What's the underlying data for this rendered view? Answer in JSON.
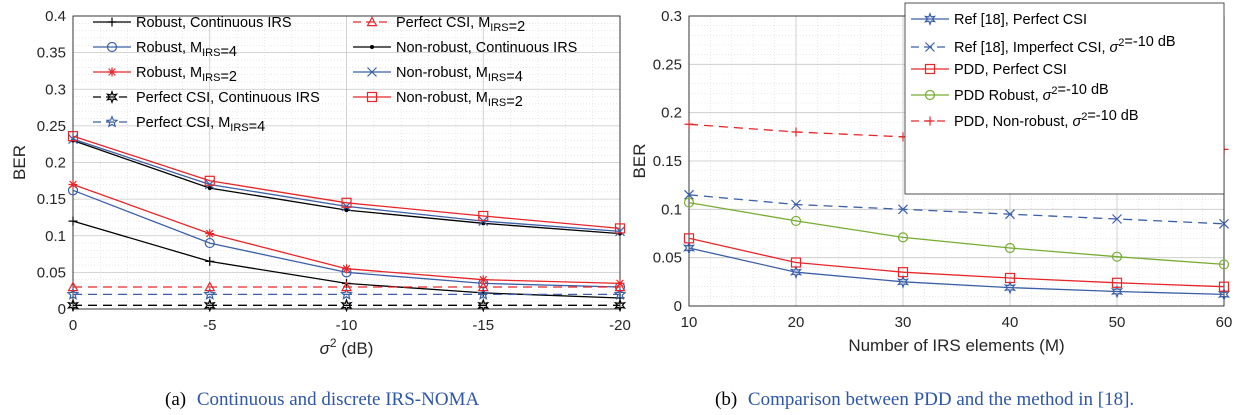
{
  "chart_data": [
    {
      "type": "line",
      "caption_tag": "(a)",
      "caption_text": "Continuous and discrete IRS-NOMA",
      "xlabel": "σ² (dB)",
      "ylabel": "BER",
      "x": [
        0,
        -5,
        -10,
        -15,
        -20
      ],
      "x_ticks": [
        "0",
        "-5",
        "-10",
        "-15",
        "-20"
      ],
      "ylim": [
        0,
        0.4
      ],
      "y_ticks": [
        "0",
        "0.05",
        "0.1",
        "0.15",
        "0.2",
        "0.25",
        "0.3",
        "0.35",
        "0.4"
      ],
      "grid": true,
      "legend": "top, two columns",
      "series": [
        {
          "name": "Robust, Continuous IRS",
          "color": "#000000",
          "dash": "solid",
          "marker": "plus",
          "values": [
            0.12,
            0.065,
            0.035,
            0.022,
            0.015
          ]
        },
        {
          "name": "Robust, M_IRS=4",
          "color": "#3b5fa8",
          "dash": "solid",
          "marker": "circle",
          "values": [
            0.162,
            0.09,
            0.05,
            0.035,
            0.03
          ]
        },
        {
          "name": "Robust, M_IRS=2",
          "color": "#e8262a",
          "dash": "solid",
          "marker": "asterisk",
          "values": [
            0.17,
            0.103,
            0.055,
            0.04,
            0.035
          ]
        },
        {
          "name": "Perfect CSI, Continuous IRS",
          "color": "#000000",
          "dash": "dashed",
          "marker": "hexagram",
          "values": [
            0.005,
            0.005,
            0.005,
            0.005,
            0.005
          ]
        },
        {
          "name": "Perfect CSI, M_IRS=4",
          "color": "#3b5fa8",
          "dash": "dashed",
          "marker": "star",
          "values": [
            0.02,
            0.02,
            0.02,
            0.02,
            0.02
          ]
        },
        {
          "name": "Perfect CSI, M_IRS=2",
          "color": "#e8262a",
          "dash": "dashed",
          "marker": "triangle",
          "values": [
            0.03,
            0.03,
            0.03,
            0.03,
            0.03
          ]
        },
        {
          "name": "Non-robust, Continuous IRS",
          "color": "#000000",
          "dash": "solid",
          "marker": "dot",
          "values": [
            0.23,
            0.165,
            0.135,
            0.117,
            0.103
          ]
        },
        {
          "name": "Non-robust, M_IRS=4",
          "color": "#3b5fa8",
          "dash": "solid",
          "marker": "cross",
          "values": [
            0.232,
            0.17,
            0.14,
            0.12,
            0.106
          ]
        },
        {
          "name": "Non-robust, M_IRS=2",
          "color": "#e8262a",
          "dash": "solid",
          "marker": "square",
          "values": [
            0.236,
            0.175,
            0.145,
            0.127,
            0.11
          ]
        }
      ]
    },
    {
      "type": "line",
      "caption_tag": "(b)",
      "caption_text": "Comparison between PDD and the method in [18].",
      "xlabel": "Number of IRS elements (M)",
      "ylabel": "BER",
      "x": [
        10,
        20,
        30,
        40,
        50,
        60
      ],
      "x_ticks": [
        "10",
        "20",
        "30",
        "40",
        "50",
        "60"
      ],
      "ylim": [
        0,
        0.3
      ],
      "y_ticks": [
        "0",
        "0.05",
        "0.1",
        "0.15",
        "0.2",
        "0.25",
        "0.3"
      ],
      "grid": true,
      "legend": "top-right",
      "series": [
        {
          "name": "Ref [18], Perfect CSI",
          "color": "#3b5fa8",
          "dash": "solid",
          "marker": "hexagram",
          "values": [
            0.06,
            0.035,
            0.025,
            0.019,
            0.015,
            0.012
          ]
        },
        {
          "name": "Ref [18], Imperfect CSI, σ²=-10 dB",
          "color": "#3b5fa8",
          "dash": "dashed",
          "marker": "cross",
          "values": [
            0.115,
            0.105,
            0.1,
            0.095,
            0.09,
            0.085
          ]
        },
        {
          "name": "PDD, Perfect CSI",
          "color": "#e8262a",
          "dash": "solid",
          "marker": "square",
          "values": [
            0.07,
            0.045,
            0.035,
            0.029,
            0.024,
            0.02
          ]
        },
        {
          "name": "PDD Robust, σ²=-10 dB",
          "color": "#77ac30",
          "dash": "solid",
          "marker": "circle",
          "values": [
            0.107,
            0.088,
            0.071,
            0.06,
            0.051,
            0.043
          ]
        },
        {
          "name": "PDD, Non-robust, σ²=-10 dB",
          "color": "#e8262a",
          "dash": "dashed",
          "marker": "plus",
          "values": [
            0.188,
            0.18,
            0.175,
            0.17,
            0.165,
            0.162
          ]
        }
      ]
    }
  ],
  "caption_color": "#2e56a6"
}
